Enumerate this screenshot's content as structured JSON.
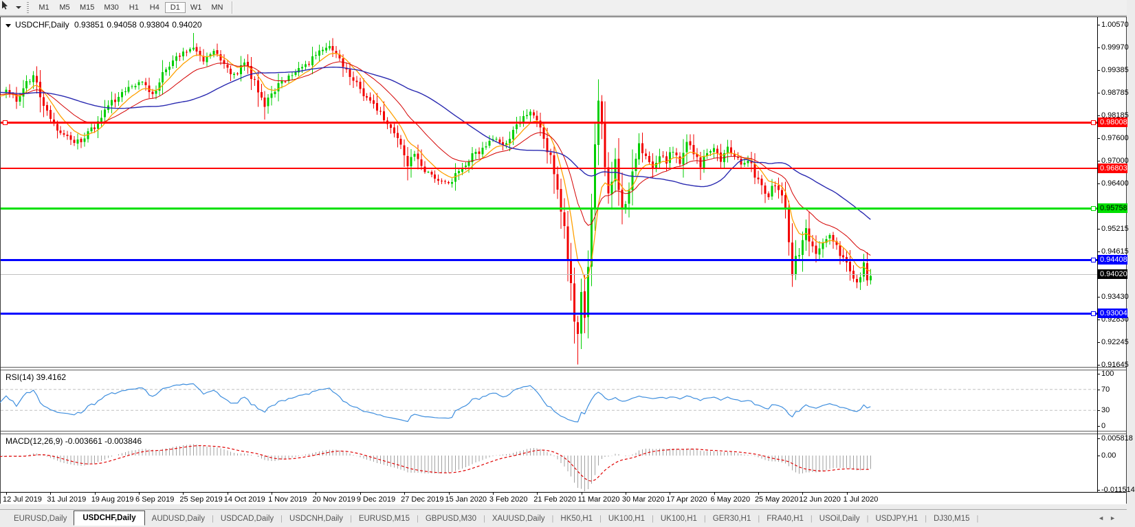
{
  "toolbar": {
    "timeframes": [
      "M1",
      "M5",
      "M15",
      "M30",
      "H1",
      "H4",
      "D1",
      "W1",
      "MN"
    ],
    "active_timeframe": "D1"
  },
  "chart_header": {
    "symbol": "USDCHF,Daily",
    "open": "0.93851",
    "high": "0.94058",
    "low": "0.93804",
    "close": "0.94020"
  },
  "price_axis": {
    "ticks": [
      {
        "label": "1.00570",
        "value": 1.0057
      },
      {
        "label": "0.99970",
        "value": 0.9997
      },
      {
        "label": "0.99385",
        "value": 0.99385
      },
      {
        "label": "0.98785",
        "value": 0.98785
      },
      {
        "label": "0.98185",
        "value": 0.98185
      },
      {
        "label": "0.97600",
        "value": 0.976
      },
      {
        "label": "0.97000",
        "value": 0.97
      },
      {
        "label": "0.96400",
        "value": 0.964
      },
      {
        "label": "0.95215",
        "value": 0.95215
      },
      {
        "label": "0.94615",
        "value": 0.94615
      },
      {
        "label": "0.93430",
        "value": 0.9343
      },
      {
        "label": "0.92830",
        "value": 0.9283
      },
      {
        "label": "0.92245",
        "value": 0.92245
      },
      {
        "label": "0.91645",
        "value": 0.91645
      }
    ]
  },
  "hlines": [
    {
      "label": "0.98008",
      "value": 0.98008,
      "color": "#FF0000",
      "thickness": 3,
      "badge_text_color": "#FFFFFF",
      "endpoint_markers": true,
      "left_marker": true
    },
    {
      "label": "0.96803",
      "value": 0.96803,
      "color": "#FF0000",
      "thickness": 2,
      "badge_text_color": "#FFFFFF",
      "endpoint_markers": false,
      "left_marker": false
    },
    {
      "label": "0.95758",
      "value": 0.95758,
      "color": "#00E000",
      "thickness": 3,
      "badge_text_color": "#000000",
      "endpoint_markers": true,
      "left_marker": false
    },
    {
      "label": "0.94408",
      "value": 0.94408,
      "color": "#0000FF",
      "thickness": 3,
      "badge_text_color": "#FFFFFF",
      "endpoint_markers": true,
      "left_marker": false
    },
    {
      "label": "0.93004",
      "value": 0.93004,
      "color": "#0000FF",
      "thickness": 3,
      "badge_text_color": "#FFFFFF",
      "endpoint_markers": true,
      "left_marker": false
    }
  ],
  "current_price_line": {
    "label": "0.94020",
    "value": 0.9402,
    "line_color": "#C0C0C0",
    "badge_color": "#000000",
    "badge_text_color": "#FFFFFF"
  },
  "rsi_panel": {
    "label": "RSI(14) 39.4162",
    "line_color": "#3E8EDE",
    "level_line_color": "#C0C0C0",
    "axis": [
      {
        "label": "100",
        "value": 100
      },
      {
        "label": "70",
        "value": 70
      },
      {
        "label": "30",
        "value": 30
      },
      {
        "label": "0",
        "value": 0
      }
    ],
    "level_lines": [
      70,
      30
    ]
  },
  "macd_panel": {
    "label": "MACD(12,26,9) -0.003661 -0.003846",
    "bar_color": "#A0A0A0",
    "signal_color": "#E00000",
    "axis": [
      {
        "label": "0.005818",
        "value": 0.005818
      },
      {
        "label": "0.00",
        "value": 0
      },
      {
        "label": "-0.011514",
        "value": -0.011514
      }
    ]
  },
  "date_axis": {
    "labels": [
      "12 Jul 2019",
      "31 Jul 2019",
      "19 Aug 2019",
      "6 Sep 2019",
      "25 Sep 2019",
      "14 Oct 2019",
      "1 Nov 2019",
      "20 Nov 2019",
      "9 Dec 2019",
      "27 Dec 2019",
      "15 Jan 2020",
      "3 Feb 2020",
      "21 Feb 2020",
      "11 Mar 2020",
      "30 Mar 2020",
      "17 Apr 2020",
      "6 May 2020",
      "25 May 2020",
      "12 Jun 2020",
      "1 Jul 2020"
    ]
  },
  "tabs": {
    "active_index": 1,
    "items": [
      "EURUSD,Daily",
      "USDCHF,Daily",
      "AUDUSD,Daily",
      "USDCAD,Daily",
      "USDCNH,Daily",
      "EURUSD,M15",
      "GBPUSD,M30",
      "XAUUSD,Daily",
      "HK50,H1",
      "UK100,H1",
      "UK100,H1",
      "GER30,H1",
      "FRA40,H1",
      "USOil,Daily",
      "USDJPY,H1",
      "DJ30,M15"
    ],
    "scroll_left_arrow": "◄",
    "scroll_right_arrow": "►"
  },
  "chart_data": [
    {
      "type": "candlestick",
      "symbol": "USDCHF",
      "timeframe": "Daily",
      "ohlc_display": {
        "open": 0.93851,
        "high": 0.94058,
        "low": 0.93804,
        "close": 0.9402
      },
      "up_color": "#00CE00",
      "down_color": "#F20000",
      "y_range": [
        0.9159,
        1.00768
      ],
      "n_candles": 255,
      "x_tick_labels": "date_axis.labels",
      "extreme_low": {
        "index": 168,
        "price": 0.9165
      },
      "extreme_high": {
        "index": 55,
        "price": 1.0035
      },
      "moving_averages": [
        {
          "name": "fast",
          "method": "ema",
          "period": 8,
          "color": "#FFA000"
        },
        {
          "name": "medium",
          "method": "ema",
          "period": 21,
          "color": "#D40000"
        },
        {
          "name": "slow",
          "method": "sma",
          "period": 45,
          "color": "#2929B0"
        }
      ],
      "close_path_anchors": [
        [
          0,
          0.988
        ],
        [
          3,
          0.986
        ],
        [
          6,
          0.9908
        ],
        [
          8,
          0.9922
        ],
        [
          10,
          0.9878
        ],
        [
          13,
          0.9806
        ],
        [
          16,
          0.9778
        ],
        [
          20,
          0.9744
        ],
        [
          23,
          0.9762
        ],
        [
          27,
          0.98
        ],
        [
          31,
          0.9852
        ],
        [
          35,
          0.9888
        ],
        [
          39,
          0.9908
        ],
        [
          43,
          0.9878
        ],
        [
          47,
          0.994
        ],
        [
          51,
          0.998
        ],
        [
          55,
          1.0
        ],
        [
          58,
          0.9968
        ],
        [
          61,
          0.9988
        ],
        [
          64,
          0.995
        ],
        [
          67,
          0.992
        ],
        [
          70,
          0.9958
        ],
        [
          73,
          0.9905
        ],
        [
          76,
          0.9852
        ],
        [
          80,
          0.9898
        ],
        [
          84,
          0.993
        ],
        [
          88,
          0.9952
        ],
        [
          92,
          0.9982
        ],
        [
          95,
          0.9998
        ],
        [
          98,
          0.9962
        ],
        [
          101,
          0.9928
        ],
        [
          104,
          0.9888
        ],
        [
          108,
          0.9846
        ],
        [
          112,
          0.98
        ],
        [
          115,
          0.9762
        ],
        [
          118,
          0.9692
        ],
        [
          120,
          0.9712
        ],
        [
          122,
          0.9678
        ],
        [
          125,
          0.9664
        ],
        [
          128,
          0.965
        ],
        [
          131,
          0.9646
        ],
        [
          134,
          0.9684
        ],
        [
          137,
          0.9712
        ],
        [
          140,
          0.9732
        ],
        [
          143,
          0.9756
        ],
        [
          146,
          0.9742
        ],
        [
          149,
          0.9778
        ],
        [
          152,
          0.9812
        ],
        [
          154,
          0.9836
        ],
        [
          156,
          0.98
        ],
        [
          158,
          0.9762
        ],
        [
          160,
          0.9704
        ],
        [
          162,
          0.9626
        ],
        [
          164,
          0.952
        ],
        [
          166,
          0.9382
        ],
        [
          167,
          0.93
        ],
        [
          168,
          0.923
        ],
        [
          169,
          0.933
        ],
        [
          170,
          0.9286
        ],
        [
          171,
          0.9398
        ],
        [
          172,
          0.9548
        ],
        [
          173,
          0.975
        ],
        [
          174,
          0.9868
        ],
        [
          175,
          0.98
        ],
        [
          176,
          0.9684
        ],
        [
          177,
          0.96
        ],
        [
          178,
          0.9648
        ],
        [
          179,
          0.97
        ],
        [
          180,
          0.9622
        ],
        [
          181,
          0.956
        ],
        [
          182,
          0.958
        ],
        [
          184,
          0.9686
        ],
        [
          186,
          0.9742
        ],
        [
          188,
          0.9712
        ],
        [
          190,
          0.9682
        ],
        [
          192,
          0.9722
        ],
        [
          194,
          0.9692
        ],
        [
          196,
          0.9732
        ],
        [
          198,
          0.9702
        ],
        [
          200,
          0.9746
        ],
        [
          202,
          0.9722
        ],
        [
          204,
          0.9692
        ],
        [
          206,
          0.9722
        ],
        [
          208,
          0.9736
        ],
        [
          210,
          0.9702
        ],
        [
          212,
          0.9732
        ],
        [
          214,
          0.9712
        ],
        [
          216,
          0.9692
        ],
        [
          218,
          0.9702
        ],
        [
          220,
          0.9662
        ],
        [
          222,
          0.9632
        ],
        [
          224,
          0.9612
        ],
        [
          226,
          0.9642
        ],
        [
          228,
          0.9602
        ],
        [
          229,
          0.9562
        ],
        [
          230,
          0.9482
        ],
        [
          231,
          0.9422
        ],
        [
          232,
          0.9444
        ],
        [
          233,
          0.9462
        ],
        [
          234,
          0.9502
        ],
        [
          235,
          0.9532
        ],
        [
          236,
          0.9492
        ],
        [
          238,
          0.9462
        ],
        [
          240,
          0.9482
        ],
        [
          242,
          0.9502
        ],
        [
          244,
          0.9472
        ],
        [
          246,
          0.9442
        ],
        [
          248,
          0.9412
        ],
        [
          250,
          0.9382
        ],
        [
          251,
          0.9402
        ],
        [
          252,
          0.9432
        ],
        [
          253,
          0.9398
        ],
        [
          254,
          0.9402
        ]
      ]
    },
    {
      "type": "line",
      "name": "RSI(14)",
      "period": 14,
      "current_value": 39.4162,
      "y_range": [
        0,
        100
      ],
      "overbought": 70,
      "oversold": 30
    },
    {
      "type": "histogram+line",
      "name": "MACD(12,26,9)",
      "fast": 12,
      "slow": 26,
      "signal": 9,
      "current_values": [
        -0.003661,
        -0.003846
      ],
      "y_range": [
        -0.011514,
        0.005818
      ]
    }
  ]
}
